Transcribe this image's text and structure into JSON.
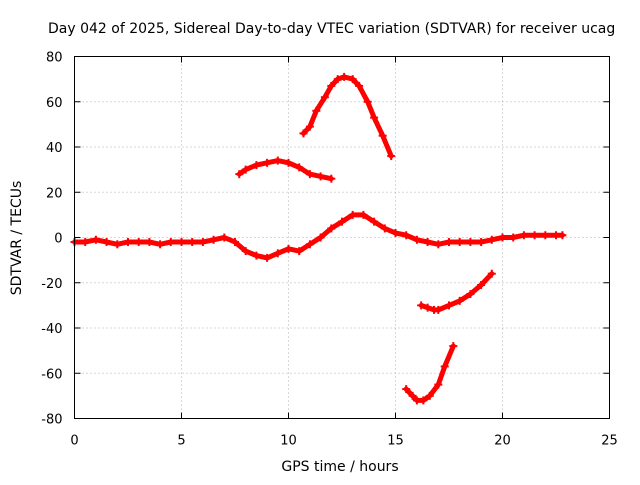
{
  "chart_data": {
    "type": "line",
    "title": "Day 042 of 2025, Sidereal Day-to-day VTEC variation (SDTVAR) for receiver ucag",
    "xlabel": "GPS time / hours",
    "ylabel": "SDTVAR / TECUs",
    "xlim": [
      0,
      25
    ],
    "ylim": [
      -80,
      80
    ],
    "xticks": [
      0,
      5,
      10,
      15,
      20,
      25
    ],
    "yticks": [
      -80,
      -60,
      -40,
      -20,
      0,
      20,
      40,
      60,
      80
    ],
    "grid": true,
    "color": "#ff0000",
    "series": [
      {
        "name": "main",
        "x": [
          0.0,
          0.5,
          1.0,
          1.5,
          2.0,
          2.5,
          3.0,
          3.5,
          4.0,
          4.5,
          5.0,
          5.5,
          6.0,
          6.5,
          7.0,
          7.5,
          8.0,
          8.5,
          9.0,
          9.5,
          10.0,
          10.5,
          11.0,
          11.5,
          12.0,
          12.5,
          13.0,
          13.5,
          14.0,
          14.5,
          15.0,
          15.5,
          16.0,
          16.5,
          17.0,
          17.5,
          18.0,
          18.5,
          19.0,
          19.5,
          20.0,
          20.5,
          21.0,
          21.5,
          22.0,
          22.5,
          22.8
        ],
        "values": [
          -2,
          -2,
          -1,
          -2,
          -3,
          -2,
          -2,
          -2,
          -3,
          -2,
          -2,
          -2,
          -2,
          -1,
          0,
          -2,
          -6,
          -8,
          -9,
          -7,
          -5,
          -6,
          -3,
          0,
          4,
          7,
          10,
          10,
          7,
          4,
          2,
          1,
          -1,
          -2,
          -3,
          -2,
          -2,
          -2,
          -2,
          -1,
          0,
          0,
          1,
          1,
          1,
          1,
          1
        ]
      },
      {
        "name": "arc-1",
        "x": [
          7.7,
          8.0,
          8.5,
          9.0,
          9.5,
          10.0,
          10.5,
          11.0,
          11.5,
          12.0
        ],
        "values": [
          28,
          30,
          32,
          33,
          34,
          33,
          31,
          28,
          27,
          26
        ]
      },
      {
        "name": "arc-2",
        "x": [
          10.7,
          11.0,
          11.3,
          11.7,
          12.0,
          12.3,
          12.6,
          13.0,
          13.3,
          13.7,
          14.0,
          14.4,
          14.8
        ],
        "values": [
          46,
          49,
          56,
          62,
          67,
          70,
          71,
          70,
          67,
          60,
          53,
          45,
          36
        ]
      },
      {
        "name": "arc-3",
        "x": [
          16.2,
          16.5,
          16.8,
          17.0,
          17.5,
          18.0,
          18.5,
          19.0,
          19.5
        ],
        "values": [
          -30,
          -31,
          -32,
          -32,
          -30,
          -28,
          -25,
          -21,
          -16
        ]
      },
      {
        "name": "arc-4",
        "x": [
          15.5,
          15.8,
          16.0,
          16.3,
          16.6,
          17.0,
          17.3,
          17.7
        ],
        "values": [
          -67,
          -70,
          -72,
          -72,
          -70,
          -65,
          -57,
          -48
        ]
      }
    ]
  }
}
